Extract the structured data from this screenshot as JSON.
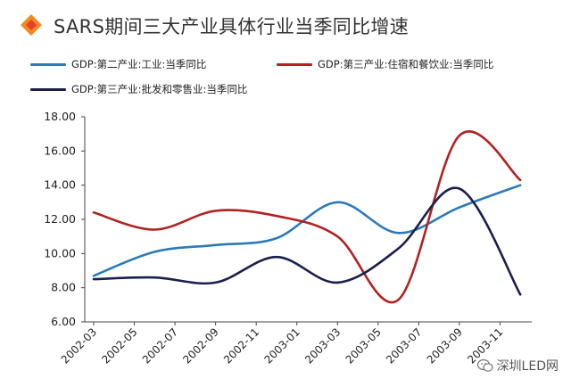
{
  "chart_data": {
    "type": "line",
    "title": "SARS期间三大产业具体行业当季同比增速",
    "categories": [
      "2002-03",
      "2002-06",
      "2002-09",
      "2002-12",
      "2003-03",
      "2003-06",
      "2003-09",
      "2003-12"
    ],
    "x_tick_labels": [
      "2002-03",
      "2002-05",
      "2002-07",
      "2002-09",
      "2002-11",
      "2003-01",
      "2003-03",
      "2003-05",
      "2003-07",
      "2003-09",
      "2003-11"
    ],
    "y_tick_labels": [
      "18.00",
      "16.00",
      "14.00",
      "12.00",
      "10.00",
      "8.00",
      "6.00"
    ],
    "ylim": [
      6,
      18
    ],
    "grid": false,
    "legend_position": "top",
    "series": [
      {
        "name": "GDP:第二产业:工业:当季同比",
        "color": "#2B7BB9",
        "values": [
          8.7,
          10.1,
          10.5,
          10.9,
          13.0,
          11.2,
          12.7,
          14.0
        ]
      },
      {
        "name": "GDP:第三产业:住宿和餐饮业:当季同比",
        "color": "#B22222",
        "values": [
          12.4,
          11.4,
          12.5,
          12.2,
          11.0,
          7.3,
          16.9,
          14.3
        ]
      },
      {
        "name": "GDP:第三产业:批发和零售业:当季同比",
        "color": "#1A1F4E",
        "values": [
          8.5,
          8.6,
          8.3,
          9.8,
          8.3,
          10.3,
          13.8,
          7.6
        ]
      }
    ]
  },
  "watermark": "深圳LED网"
}
